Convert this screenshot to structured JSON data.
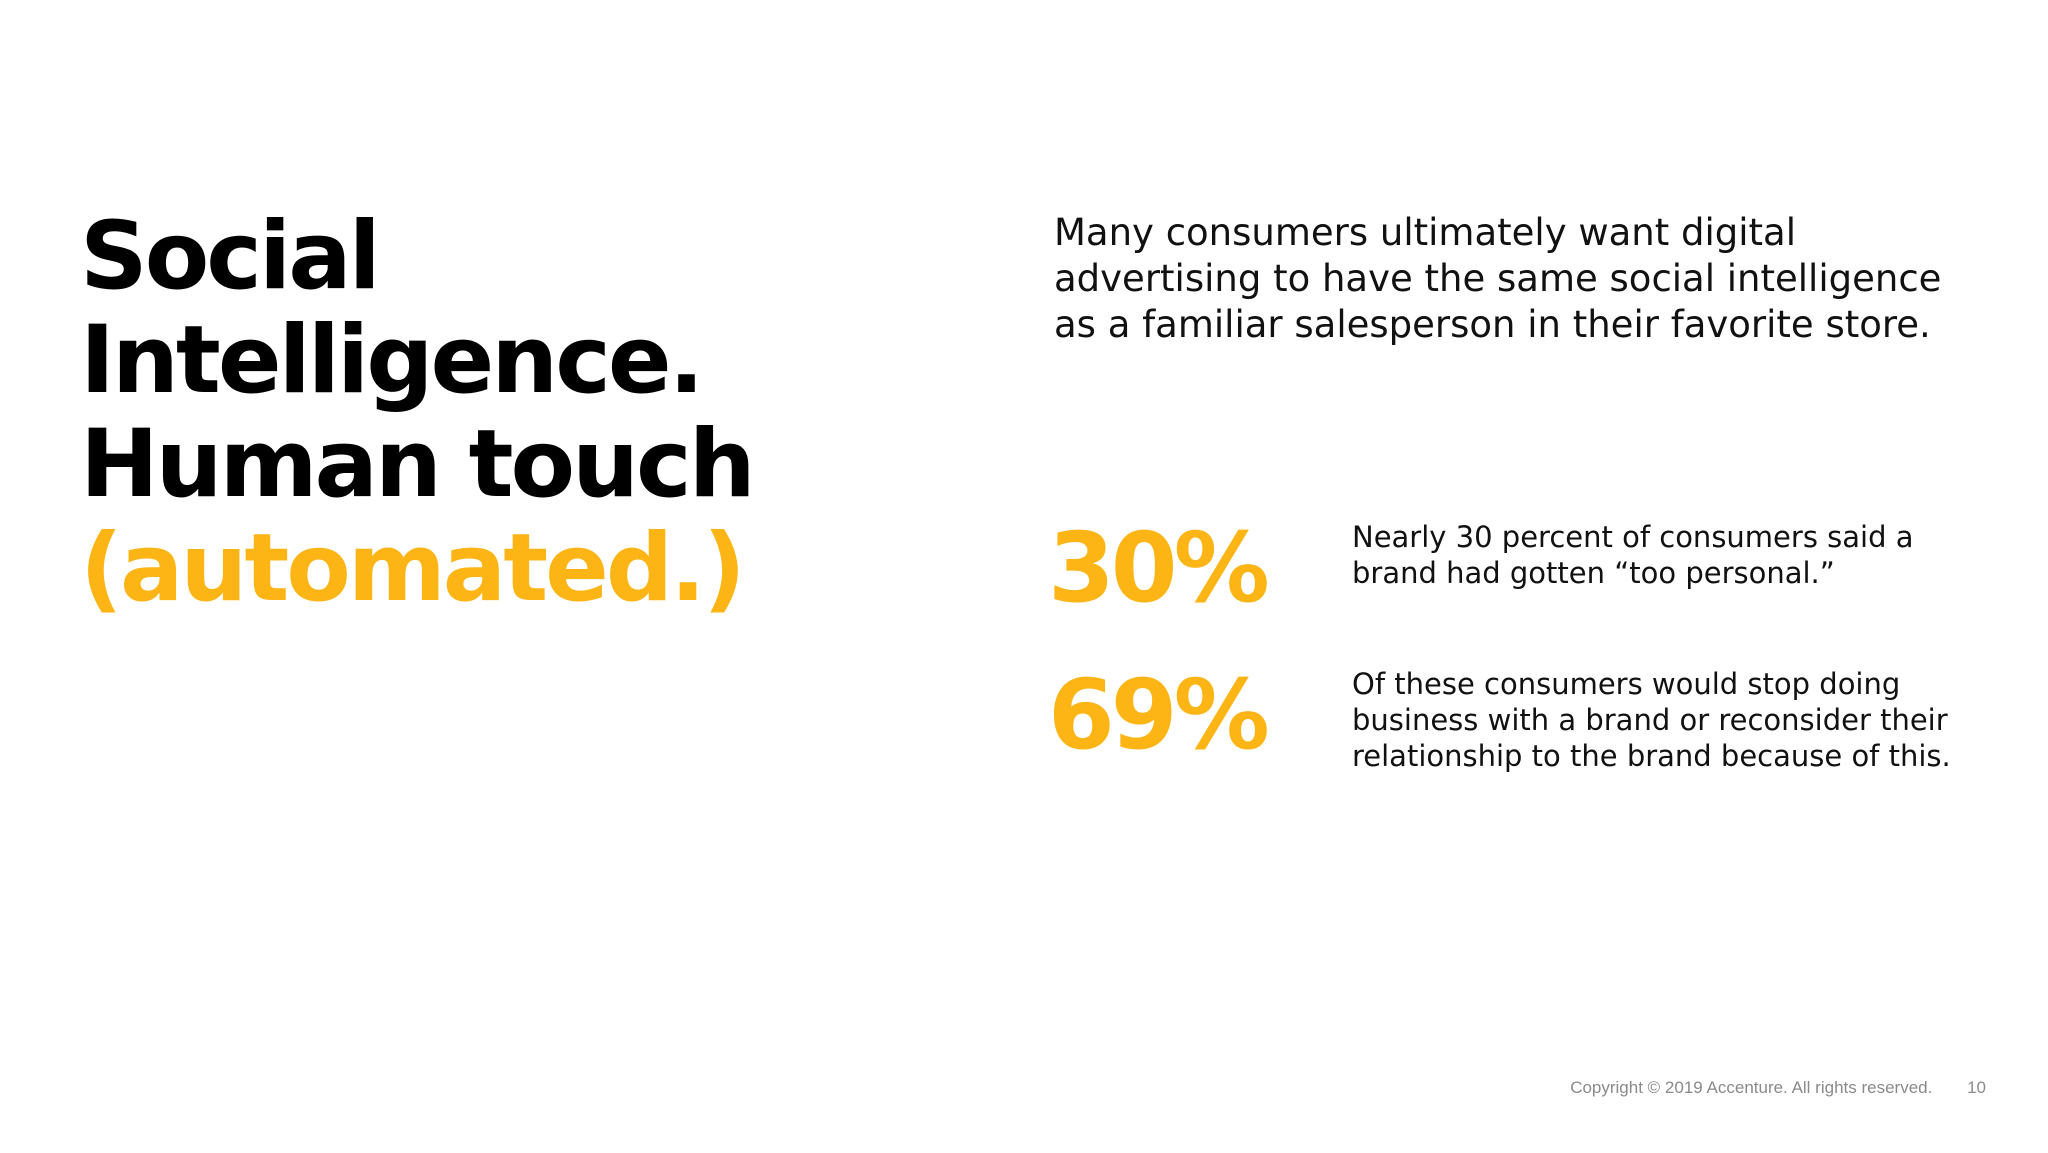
{
  "headline": {
    "line1": "Social",
    "line2": "Intelligence.",
    "line3": "Human touch",
    "line4": "(automated.)"
  },
  "intro": "Many consumers ultimately want digital advertising to have the same social intelligence as a familiar salesperson in their favorite store.",
  "stats": [
    {
      "value": "30%",
      "text": "Nearly 30 percent of consumers said a brand had gotten “too personal.”"
    },
    {
      "value": "69%",
      "text": "Of these consumers would stop doing business with a brand or reconsider their relationship to the brand because of this."
    }
  ],
  "footer": {
    "copyright": "Copyright © 2019 Accenture. All rights reserved.",
    "page_number": "10"
  },
  "colors": {
    "accent": "#fdb515",
    "text": "#000000",
    "footer": "#8a8a8a"
  }
}
